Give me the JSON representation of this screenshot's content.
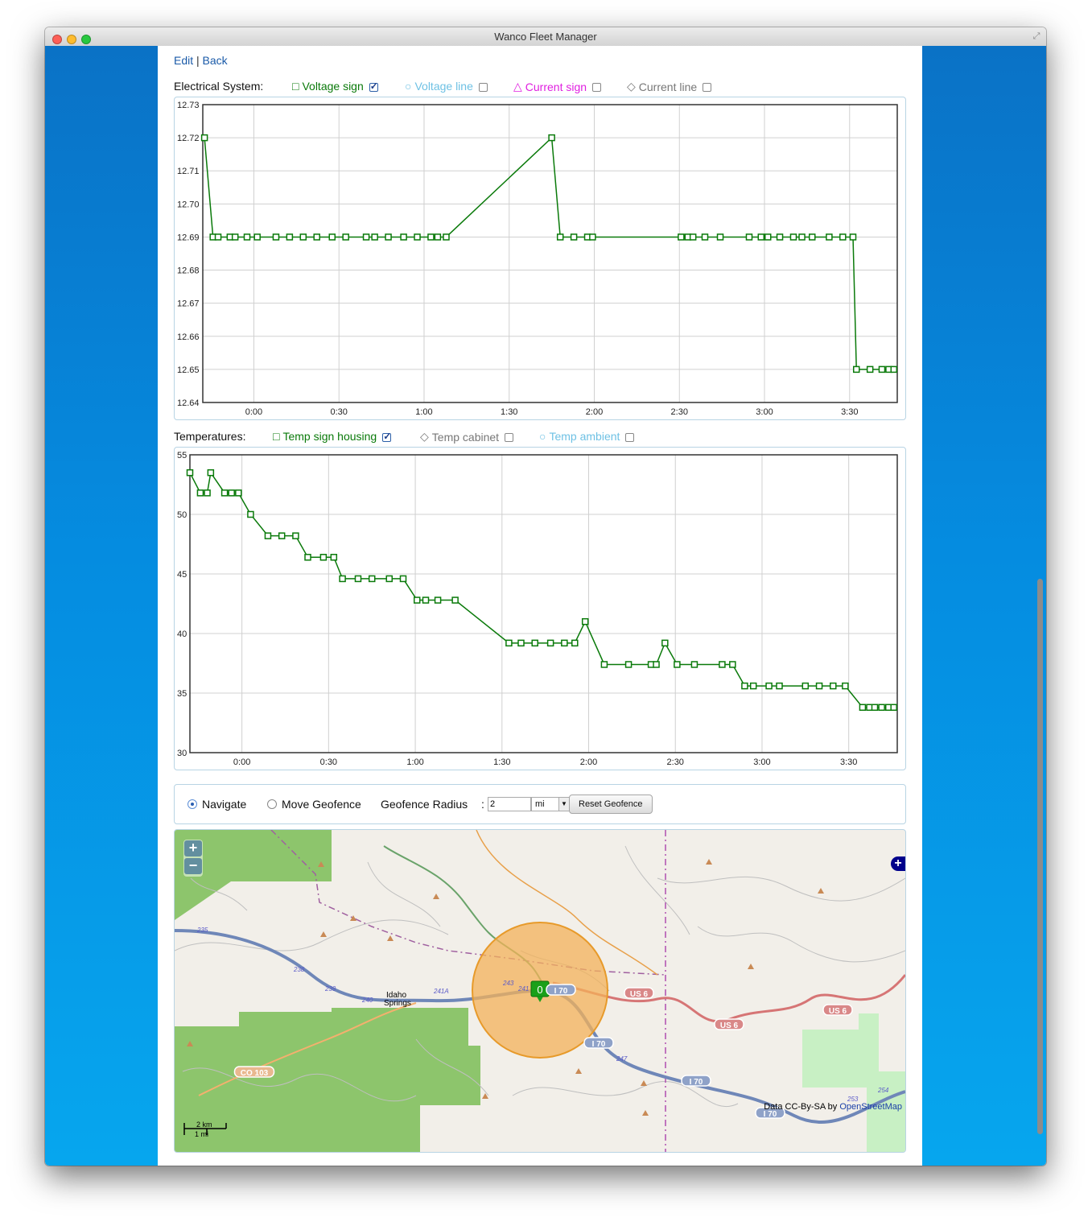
{
  "window": {
    "title": "Wanco Fleet Manager"
  },
  "nav": {
    "edit": "Edit",
    "separator": "|",
    "back": "Back"
  },
  "electrical": {
    "label": "Electrical System:",
    "legend": [
      {
        "name": "voltage-sign",
        "symbol": "□",
        "text": "Voltage sign",
        "color": "#0a7a0a",
        "checked": true
      },
      {
        "name": "voltage-line",
        "symbol": "○",
        "text": "Voltage line",
        "color": "#6ec1e4",
        "checked": false
      },
      {
        "name": "current-sign",
        "symbol": "△",
        "text": "Current sign",
        "color": "#e020e0",
        "checked": false
      },
      {
        "name": "current-line",
        "symbol": "◇",
        "text": "Current line",
        "color": "#777777",
        "checked": false
      }
    ]
  },
  "temperatures": {
    "label": "Temperatures:",
    "legend": [
      {
        "name": "temp-sign-housing",
        "symbol": "□",
        "text": "Temp sign housing",
        "color": "#0a7a0a",
        "checked": true
      },
      {
        "name": "temp-cabinet",
        "symbol": "◇",
        "text": "Temp cabinet",
        "color": "#777777",
        "checked": false
      },
      {
        "name": "temp-ambient",
        "symbol": "○",
        "text": "Temp ambient",
        "color": "#6ec1e4",
        "checked": false
      }
    ]
  },
  "chart_data": [
    {
      "type": "line",
      "series": [
        {
          "name": "Voltage sign",
          "x": [
            -0.29,
            -0.24,
            -0.21,
            -0.14,
            -0.11,
            -0.04,
            0.02,
            0.13,
            0.21,
            0.29,
            0.37,
            0.46,
            0.54,
            0.66,
            0.71,
            0.79,
            0.88,
            0.96,
            1.04,
            1.08,
            1.13,
            1.75,
            1.8,
            1.88,
            1.96,
            1.99,
            2.51,
            2.55,
            2.58,
            2.65,
            2.74,
            2.91,
            2.98,
            3.02,
            3.09,
            3.17,
            3.22,
            3.28,
            3.38,
            3.46,
            3.52,
            3.54,
            3.62,
            3.69,
            3.73,
            3.76
          ],
          "y": [
            12.72,
            12.69,
            12.69,
            12.69,
            12.69,
            12.69,
            12.69,
            12.69,
            12.69,
            12.69,
            12.69,
            12.69,
            12.69,
            12.69,
            12.69,
            12.69,
            12.69,
            12.69,
            12.69,
            12.69,
            12.69,
            12.72,
            12.69,
            12.69,
            12.69,
            12.69,
            12.69,
            12.69,
            12.69,
            12.69,
            12.69,
            12.69,
            12.69,
            12.69,
            12.69,
            12.69,
            12.69,
            12.69,
            12.69,
            12.69,
            12.69,
            12.65,
            12.65,
            12.65,
            12.65,
            12.65
          ]
        }
      ],
      "x_ticks": [
        "0:00",
        "0:30",
        "1:00",
        "1:30",
        "2:00",
        "2:30",
        "3:00",
        "3:30"
      ],
      "y_ticks": [
        "12.64",
        "12.65",
        "12.66",
        "12.67",
        "12.68",
        "12.69",
        "12.70",
        "12.71",
        "12.72",
        "12.73"
      ],
      "xlim": [
        -0.3,
        3.78
      ],
      "ylim": [
        12.64,
        12.73
      ],
      "grid": true,
      "color": "#0a7a0a"
    },
    {
      "type": "line",
      "series": [
        {
          "name": "Temp sign housing",
          "x": [
            -0.3,
            -0.24,
            -0.2,
            -0.18,
            -0.1,
            -0.06,
            -0.02,
            0.05,
            0.15,
            0.23,
            0.31,
            0.38,
            0.47,
            0.53,
            0.58,
            0.67,
            0.75,
            0.85,
            0.93,
            1.01,
            1.06,
            1.13,
            1.23,
            1.54,
            1.61,
            1.69,
            1.78,
            1.86,
            1.92,
            1.98,
            2.09,
            2.23,
            2.36,
            2.39,
            2.44,
            2.51,
            2.61,
            2.77,
            2.83,
            2.9,
            2.95,
            3.04,
            3.1,
            3.25,
            3.33,
            3.41,
            3.48,
            3.58,
            3.62,
            3.65,
            3.69,
            3.73,
            3.76
          ],
          "y": [
            53.5,
            51.8,
            51.8,
            53.5,
            51.8,
            51.8,
            51.8,
            50.0,
            48.2,
            48.2,
            48.2,
            46.4,
            46.4,
            46.4,
            44.6,
            44.6,
            44.6,
            44.6,
            44.6,
            42.8,
            42.8,
            42.8,
            42.8,
            39.2,
            39.2,
            39.2,
            39.2,
            39.2,
            39.2,
            41.0,
            37.4,
            37.4,
            37.4,
            37.4,
            39.2,
            37.4,
            37.4,
            37.4,
            37.4,
            35.6,
            35.6,
            35.6,
            35.6,
            35.6,
            35.6,
            35.6,
            35.6,
            33.8,
            33.8,
            33.8,
            33.8,
            33.8,
            33.8
          ]
        }
      ],
      "x_ticks": [
        "0:00",
        "0:30",
        "1:00",
        "1:30",
        "2:00",
        "2:30",
        "3:00",
        "3:30"
      ],
      "y_ticks": [
        "30",
        "35",
        "40",
        "45",
        "50",
        "55"
      ],
      "xlim": [
        -0.3,
        3.78
      ],
      "ylim": [
        30,
        55
      ],
      "grid": true,
      "color": "#0a7a0a"
    }
  ],
  "geofence": {
    "navigate_label": "Navigate",
    "move_label": "Move Geofence",
    "radius_label": "Geofence Radius",
    "colon": ":",
    "radius_value": "2",
    "unit": "mi",
    "reset_label": "Reset Geofence",
    "selected": "navigate"
  },
  "map": {
    "zoom_in": "+",
    "zoom_out": "−",
    "layer_switch": "+",
    "marker_label": "0",
    "attribution_prefix": "Data CC-By-SA by ",
    "attribution_link": "OpenStreetMap",
    "scale_km": "2 km",
    "scale_mi": "1 mi",
    "place": "Idaho Springs",
    "road_labels": [
      "I 70",
      "I 70",
      "I 70",
      "I 70",
      "US 6",
      "US 6",
      "US 6",
      "CO 103"
    ],
    "exit_numbers": [
      "235",
      "238",
      "239",
      "240",
      "241A",
      "243",
      "241",
      "247",
      "253",
      "254"
    ]
  }
}
